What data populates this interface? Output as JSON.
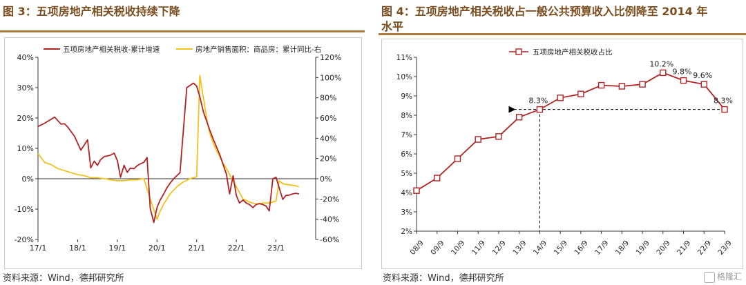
{
  "left_panel": {
    "figure_title": "图 3：五项房地产相关税收持续下降",
    "source": "资料来源：Wind，德邦研究所"
  },
  "right_panel": {
    "figure_title_line1": "图 4：五项房地产相关税收占一般公共预算收入比例降至 2014 年",
    "figure_title_line2": "水平",
    "source": "资料来源：Wind，德邦研究所"
  },
  "watermark": "格隆汇",
  "chart_data": [
    {
      "type": "line",
      "x_ticks": [
        "17/1",
        "18/1",
        "19/1",
        "20/1",
        "21/1",
        "22/1",
        "23/1"
      ],
      "y_left_ticks": [
        "40%",
        "30%",
        "20%",
        "10%",
        "0%",
        "-10%",
        "-20%"
      ],
      "y_right_ticks": [
        "120%",
        "100%",
        "80%",
        "60%",
        "40%",
        "20%",
        "0%",
        "-20%",
        "-40%",
        "-60%"
      ],
      "ylim_left": [
        -20,
        40
      ],
      "ylim_right": [
        -60,
        120
      ],
      "legend_position": "top",
      "colors": {
        "tax": "#b22222",
        "sales": "#f2c21b"
      },
      "series": [
        {
          "name": "五项房地产相关税收-累计增速",
          "axis": "left",
          "color": "#b22222",
          "x": [
            0,
            0.17,
            0.42,
            0.58,
            0.67,
            0.75,
            0.92,
            1.08,
            1.25,
            1.33,
            1.42,
            1.5,
            1.58,
            1.67,
            1.75,
            1.83,
            1.92,
            2.0,
            2.08,
            2.17,
            2.25,
            2.33,
            2.42,
            2.5,
            2.58,
            2.67,
            2.75,
            2.83,
            2.92,
            3.0,
            3.08,
            3.17,
            3.25,
            3.33,
            3.42,
            3.58,
            3.75,
            3.92,
            4.0,
            4.08,
            4.17,
            4.25,
            4.33,
            4.42,
            4.58,
            4.75,
            4.83,
            4.92,
            5.0,
            5.08,
            5.17,
            5.25,
            5.33,
            5.42,
            5.5,
            5.58,
            5.67,
            5.75,
            5.83,
            5.92,
            6.0,
            6.08,
            6.17,
            6.25,
            6.33,
            6.42,
            6.5,
            6.58
          ],
          "values": [
            17.2,
            18.3,
            20.3,
            18,
            18.1,
            17,
            14,
            9.4,
            12.8,
            3.6,
            5.8,
            4.4,
            6.3,
            7.3,
            7.5,
            7.8,
            8.4,
            6,
            0.5,
            4.4,
            2.1,
            3.5,
            3.3,
            4.3,
            4.9,
            5.4,
            7,
            -9.8,
            -14.4,
            -9.5,
            -7,
            -5,
            -3,
            -1.5,
            0,
            2,
            30,
            31.5,
            30.5,
            27,
            22,
            19,
            16,
            13,
            8,
            1.5,
            -5,
            1,
            -5.5,
            -8,
            -7,
            -8,
            -8.5,
            -9.5,
            -8.5,
            -8.2,
            -8.5,
            -9,
            -10.6,
            0,
            0.5,
            -3,
            -6.8,
            -5.5,
            -5.4,
            -5,
            -4.8,
            -5
          ]
        },
        {
          "name": "房地产销售面积：商品房：累计同比-右",
          "axis": "right",
          "color": "#f2c21b",
          "x": [
            0,
            0.17,
            0.33,
            0.5,
            0.67,
            0.83,
            1.0,
            1.17,
            1.33,
            1.5,
            1.67,
            1.83,
            2.0,
            2.17,
            2.33,
            2.5,
            2.67,
            2.83,
            3.0,
            3.08,
            3.17,
            3.33,
            3.5,
            3.67,
            3.83,
            4.0,
            4.08,
            4.17,
            4.25,
            4.33,
            4.42,
            4.5,
            4.58,
            4.67,
            4.75,
            4.83,
            5.0,
            5.17,
            5.33,
            5.5,
            5.67,
            5.83,
            6.0,
            6.08,
            6.17,
            6.33,
            6.5,
            6.58
          ],
          "values": [
            25,
            16,
            14,
            10,
            8,
            6,
            4,
            3,
            1,
            1,
            0,
            -1,
            -2,
            -2,
            -1,
            -1,
            0,
            -20,
            -40,
            -32,
            -25,
            -15,
            -8,
            -3,
            0,
            2,
            102,
            80,
            60,
            45,
            35,
            28,
            22,
            15,
            10,
            4,
            -8,
            -20,
            -23,
            -25,
            -24,
            -24,
            -22,
            -2,
            -5,
            -6,
            -7,
            -8
          ]
        }
      ]
    },
    {
      "type": "line",
      "categories": [
        "08/9",
        "09/9",
        "10/9",
        "11/9",
        "12/9",
        "13/9",
        "14/9",
        "15/9",
        "16/9",
        "17/9",
        "18/9",
        "19/9",
        "20/9",
        "21/9",
        "22/9",
        "23/9"
      ],
      "values": [
        4.1,
        4.75,
        5.75,
        6.75,
        6.9,
        7.9,
        8.3,
        8.9,
        9.1,
        9.55,
        9.5,
        9.6,
        10.2,
        9.8,
        9.6,
        8.3
      ],
      "y_ticks": [
        "11%",
        "10%",
        "9%",
        "8%",
        "7%",
        "6%",
        "5%",
        "4%",
        "3%",
        "2%"
      ],
      "ylim": [
        2,
        11
      ],
      "legend_position": "top",
      "color": "#b22222",
      "series_name": "五项房地产相关税收占比",
      "data_labels": [
        {
          "index": 6,
          "text": "8.3%"
        },
        {
          "index": 12,
          "text": "10.2%"
        },
        {
          "index": 13,
          "text": "9.8%"
        },
        {
          "index": 14,
          "text": "9.6%"
        },
        {
          "index": 15,
          "text": "8.3%"
        }
      ],
      "reference_line": {
        "from_index": 15,
        "to_index": 6,
        "value": 8.3,
        "style": "dashed-arrow"
      }
    }
  ]
}
